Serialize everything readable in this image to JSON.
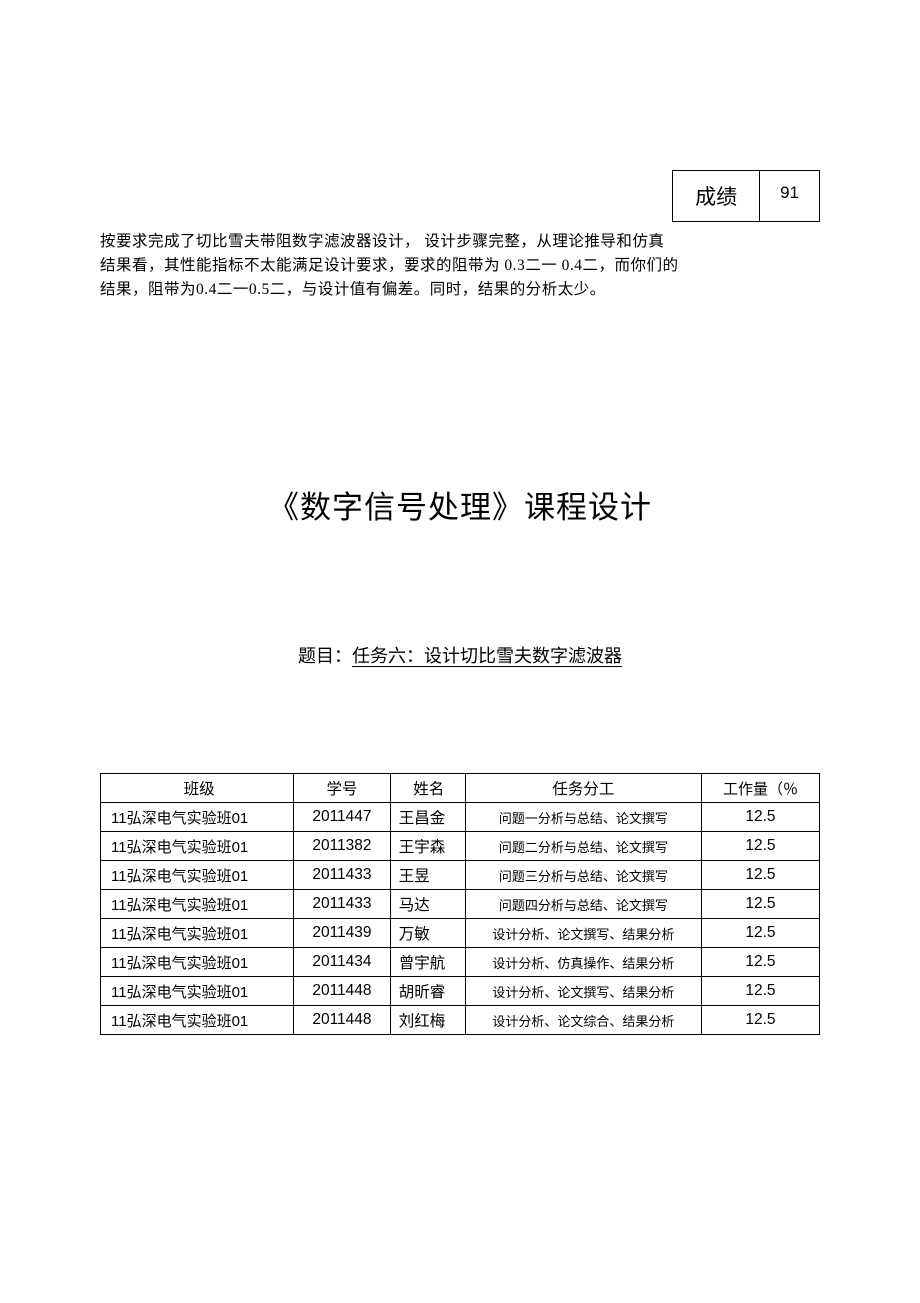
{
  "score": {
    "label": "成绩",
    "value": "91"
  },
  "comment": {
    "line1": "按要求完成了切比雪夫带阻数字滤波器设计，    设计步骤完整，从理论推导和仿真",
    "line2": "结果看，其性能指标不太能满足设计要求，要求的阻带为 0.3二一 0.4二，而你们的",
    "line3": "结果，阻带为0.4二一0.5二，与设计值有偏差。同时，结果的分析太少。"
  },
  "main_title": "《数字信号处理》课程设计",
  "subtitle": {
    "label": "题目：",
    "value": "任务六：设计切比雪夫数字滤波器"
  },
  "table": {
    "headers": {
      "class": "班级",
      "id": "学号",
      "name": "姓名",
      "task": "任务分工",
      "load": "工作量（％"
    },
    "rows": [
      {
        "class": "11弘深电气实验班01",
        "id": "2011447",
        "name": "王昌金",
        "task": "问题一分析与总结、论文撰写",
        "load": "12.5"
      },
      {
        "class": "11弘深电气实验班01",
        "id": "2011382",
        "name": "王宇森",
        "task": "问题二分析与总结、论文撰写",
        "load": "12.5"
      },
      {
        "class": "11弘深电气实验班01",
        "id": "2011433",
        "name": "王昱",
        "task": "问题三分析与总结、论文撰写",
        "load": "12.5"
      },
      {
        "class": "11弘深电气实验班01",
        "id": "2011433",
        "name": "马达",
        "task": "问题四分析与总结、论文撰写",
        "load": "12.5"
      },
      {
        "class": "11弘深电气实验班01",
        "id": "2011439",
        "name": "万敏",
        "task": "设计分析、论文撰写、结果分析",
        "load": "12.5"
      },
      {
        "class": "11弘深电气实验班01",
        "id": "2011434",
        "name": "曾宇航",
        "task": "设计分析、仿真操作、结果分析",
        "load": "12.5"
      },
      {
        "class": "11弘深电气实验班01",
        "id": "2011448",
        "name": "胡昕睿",
        "task": "设计分析、论文撰写、结果分析",
        "load": "12.5"
      },
      {
        "class": "11弘深电气实验班01",
        "id": "2011448",
        "name": "刘红梅",
        "task": "设计分析、论文综合、结果分析",
        "load": "12.5"
      }
    ]
  },
  "colors": {
    "text": "#000000",
    "background": "#ffffff",
    "border": "#000000"
  }
}
